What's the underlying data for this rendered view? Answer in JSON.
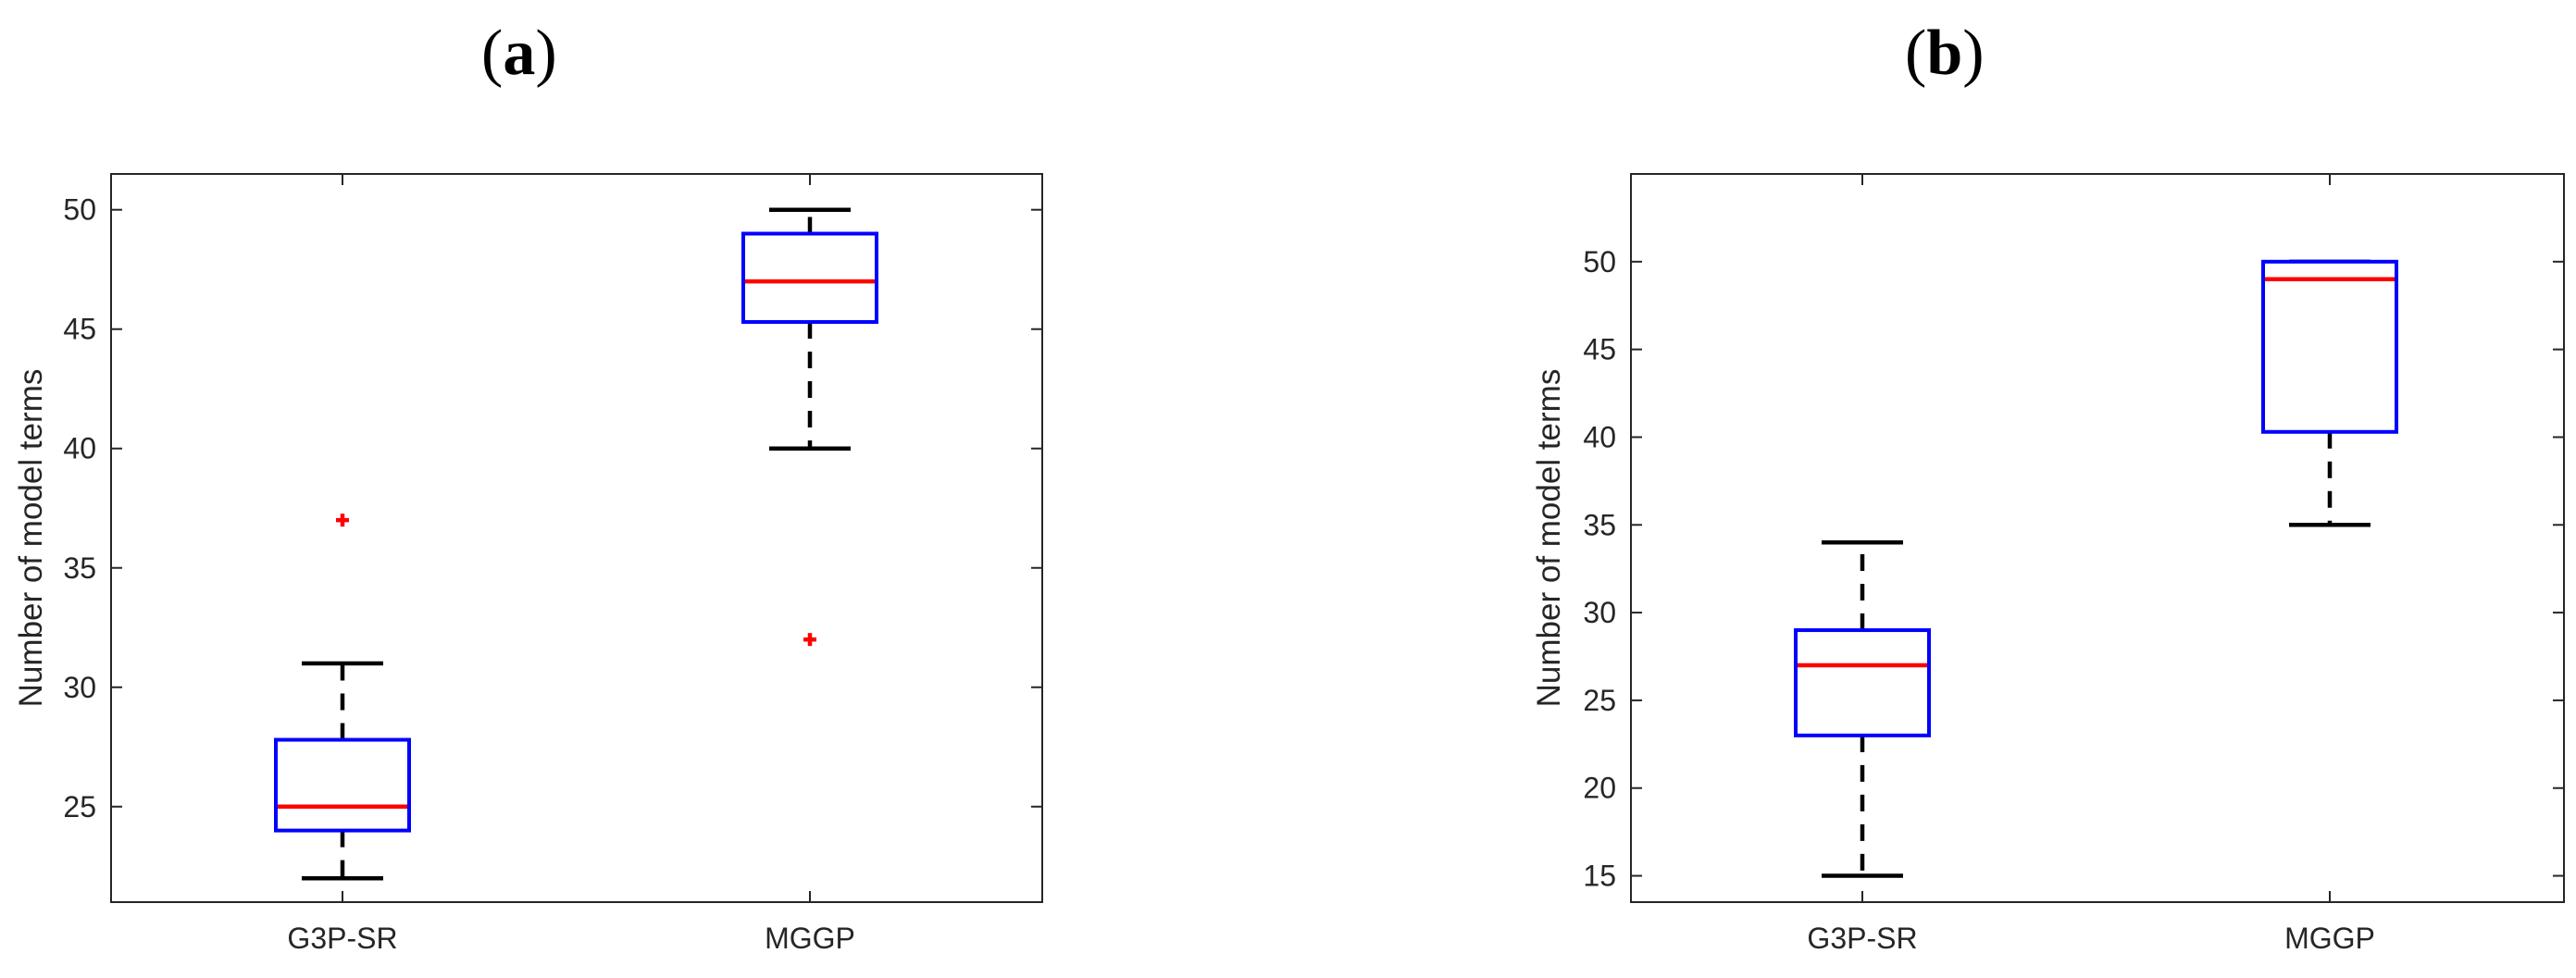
{
  "panels": {
    "a": {
      "label_open": "(",
      "label_letter": "a",
      "label_close": ")"
    },
    "b": {
      "label_open": "(",
      "label_letter": "b",
      "label_close": ")"
    }
  },
  "colors": {
    "box": "#0000ff",
    "median": "#ff0000",
    "whisker": "#000000",
    "outlier": "#ff0000",
    "axis": "#262626"
  },
  "chart_data": [
    {
      "type": "box",
      "panel": "(a)",
      "title": "",
      "xlabel": "",
      "ylabel": "Number of model terms",
      "categories": [
        "G3P-SR",
        "MGGP"
      ],
      "ylim": [
        21,
        51.5
      ],
      "yticks": [
        25,
        30,
        35,
        40,
        45,
        50
      ],
      "grid": false,
      "boxes": [
        {
          "name": "G3P-SR",
          "whisker_low": 22,
          "q1": 24,
          "median": 25,
          "q3": 27.8,
          "whisker_high": 31,
          "outliers": [
            37
          ]
        },
        {
          "name": "MGGP",
          "whisker_low": 40,
          "q1": 45.3,
          "median": 47,
          "q3": 49,
          "whisker_high": 50,
          "outliers": [
            32
          ]
        }
      ]
    },
    {
      "type": "box",
      "panel": "(b)",
      "title": "",
      "xlabel": "",
      "ylabel": "Number of model terms",
      "categories": [
        "G3P-SR",
        "MGGP"
      ],
      "ylim": [
        13.5,
        55
      ],
      "yticks": [
        15,
        20,
        25,
        30,
        35,
        40,
        45,
        50
      ],
      "grid": false,
      "boxes": [
        {
          "name": "G3P-SR",
          "whisker_low": 15,
          "q1": 23,
          "median": 27,
          "q3": 29,
          "whisker_high": 34,
          "outliers": []
        },
        {
          "name": "MGGP",
          "whisker_low": 35,
          "q1": 40.3,
          "median": 49,
          "q3": 50,
          "whisker_high": 50,
          "outliers": []
        }
      ]
    }
  ]
}
